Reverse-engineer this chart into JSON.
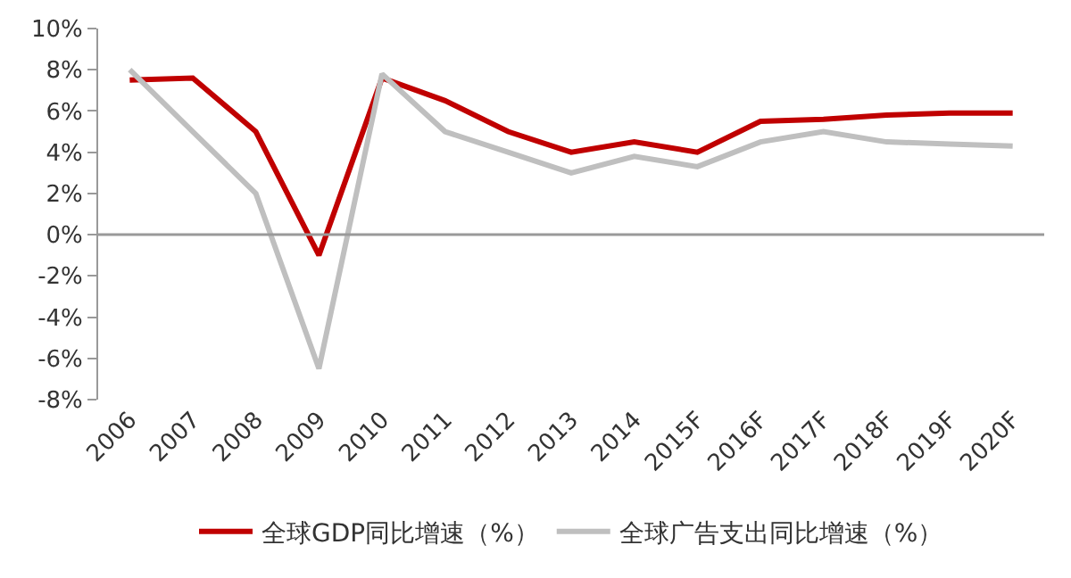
{
  "chart_data": {
    "type": "line",
    "categories": [
      "2006",
      "2007",
      "2008",
      "2009",
      "2010",
      "2011",
      "2012",
      "2013",
      "2014",
      "2015F",
      "2016F",
      "2017F",
      "2018F",
      "2019F",
      "2020F"
    ],
    "series": [
      {
        "name": "全球GDP同比增速（%）",
        "color": "#c00000",
        "values": [
          7.5,
          7.6,
          5.0,
          -1.0,
          7.6,
          6.5,
          5.0,
          4.0,
          4.5,
          4.0,
          5.5,
          5.6,
          5.8,
          5.9,
          5.9
        ]
      },
      {
        "name": "全球广告支出同比增速（%）",
        "color": "#bfbfbf",
        "values": [
          8.0,
          5.0,
          2.0,
          -6.5,
          7.8,
          5.0,
          4.0,
          3.0,
          3.8,
          3.3,
          4.5,
          5.0,
          4.5,
          4.4,
          4.3
        ]
      }
    ],
    "ylim": [
      -8,
      10
    ],
    "yticks": [
      {
        "value": -8,
        "label": "-8%"
      },
      {
        "value": -6,
        "label": "-6%"
      },
      {
        "value": -4,
        "label": "-4%"
      },
      {
        "value": -2,
        "label": "-2%"
      },
      {
        "value": 0,
        "label": "0%"
      },
      {
        "value": 2,
        "label": "2%"
      },
      {
        "value": 4,
        "label": "4%"
      },
      {
        "value": 6,
        "label": "6%"
      },
      {
        "value": 8,
        "label": "8%"
      },
      {
        "value": 10,
        "label": "10%"
      }
    ],
    "ref_lines": [
      {
        "axis": "y",
        "value": 0,
        "color": "#999999",
        "line_style": "solid"
      }
    ],
    "legend": "bottom",
    "marker": "none",
    "line_style": "solid"
  }
}
